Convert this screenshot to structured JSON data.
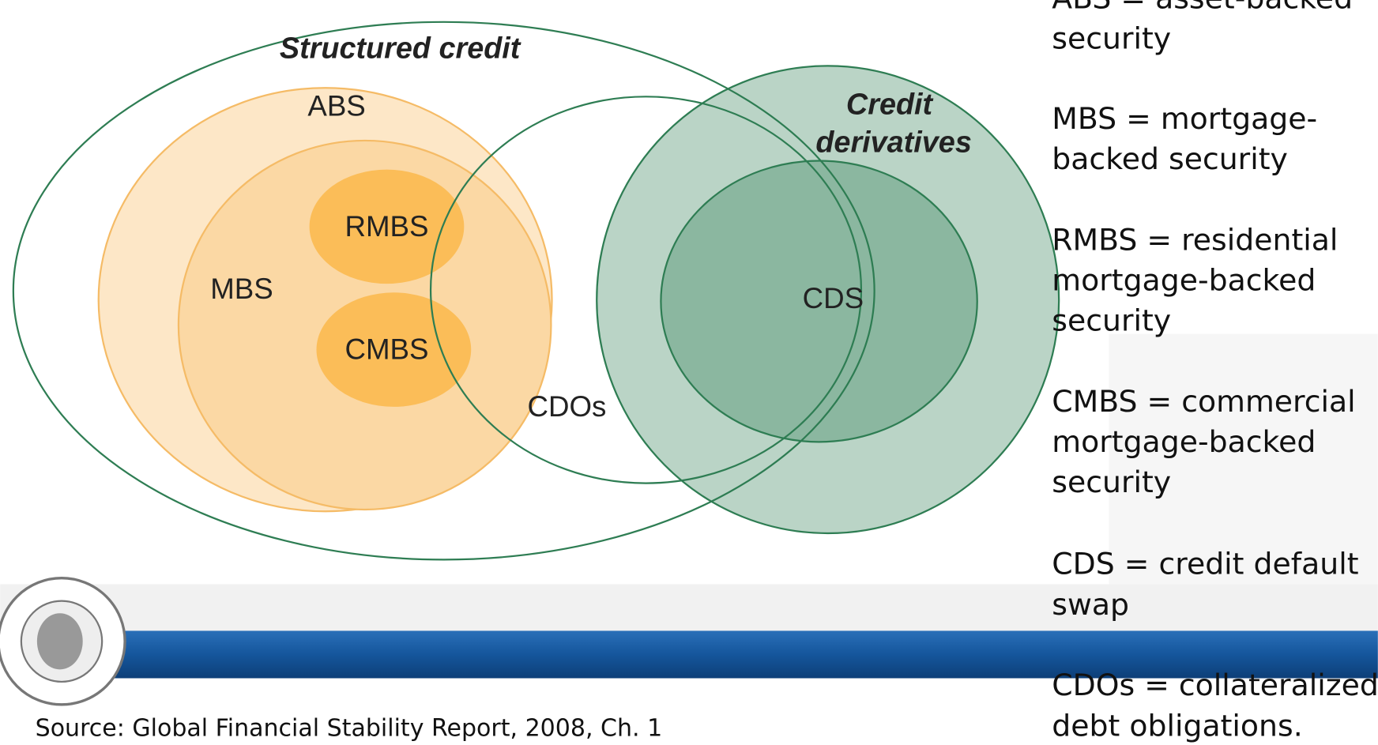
{
  "diagram": {
    "title": "Structured credit",
    "nodes": [
      {
        "label": "ABS"
      },
      {
        "label": "MBS"
      },
      {
        "label": "RMBS"
      },
      {
        "label": "CMBS"
      },
      {
        "label": "CDOs"
      },
      {
        "label": "CDS"
      },
      {
        "label": [
          "Credit",
          "derivatives"
        ]
      }
    ]
  },
  "definitions": [
    [
      "ABS = asset-backed",
      "security"
    ],
    [
      "MBS = mortgage-",
      "backed security"
    ],
    [
      "RMBS = residential",
      "mortgage-backed",
      "security"
    ],
    [
      "CMBS = commercial",
      "mortgage-backed",
      "security"
    ],
    [
      "CDS = credit default",
      "swap"
    ],
    [
      "CDOs = collateralized",
      "debt obligations."
    ]
  ],
  "footer": {
    "source": "Source: Global Financial Stability Report,  2008, Ch. 1"
  }
}
